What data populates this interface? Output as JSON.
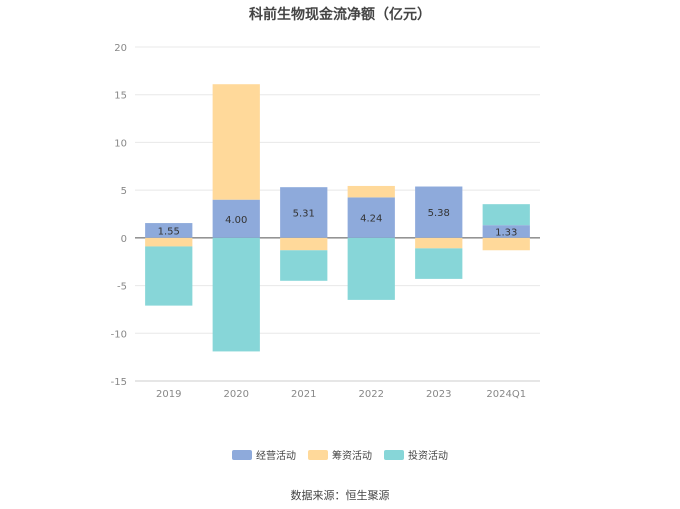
{
  "chart_data": {
    "type": "bar",
    "stacked": true,
    "title": "科前生物现金流净额（亿元）",
    "categories": [
      "2019",
      "2020",
      "2021",
      "2022",
      "2023",
      "2024Q1"
    ],
    "ylim": [
      -15,
      20
    ],
    "yticks": [
      20,
      15,
      10,
      5,
      0,
      -5,
      -10,
      -15
    ],
    "grid": true,
    "legend_position": "bottom",
    "series": [
      {
        "name": "经营活动",
        "color": "#8eaadb",
        "values": [
          1.55,
          4.0,
          5.31,
          4.24,
          5.38,
          1.33
        ],
        "show_labels": true
      },
      {
        "name": "筹资活动",
        "color": "#ffd99a",
        "values": [
          -0.9,
          12.1,
          -1.3,
          1.2,
          -1.1,
          -1.3
        ],
        "show_labels": false
      },
      {
        "name": "投资活动",
        "color": "#87d6d8",
        "values": [
          -6.2,
          -11.9,
          -3.2,
          -6.5,
          -3.2,
          2.2
        ],
        "show_labels": false
      }
    ]
  },
  "source": "数据来源：恒生聚源"
}
